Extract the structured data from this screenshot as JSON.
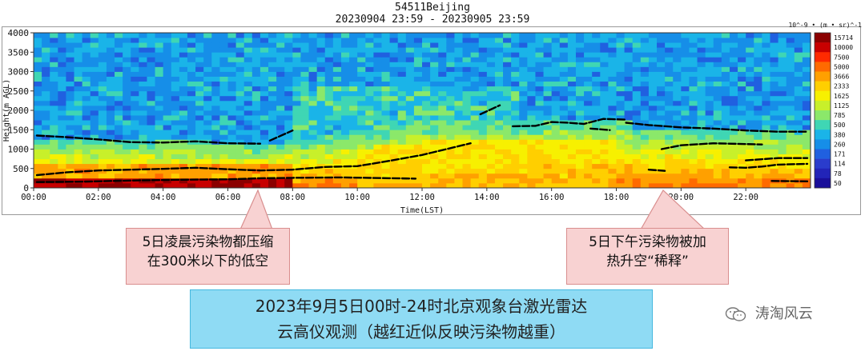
{
  "chart_data": {
    "type": "heatmap",
    "title": "54511Beijing",
    "subtitle": "20230904 23:59 - 20230905 23:59",
    "xlabel": "Time(LST)",
    "ylabel": "Height(m AGL)",
    "x_ticks": [
      "00:00",
      "02:00",
      "04:00",
      "06:00",
      "08:00",
      "10:00",
      "12:00",
      "14:00",
      "16:00",
      "18:00",
      "20:00",
      "22:00"
    ],
    "xlim": [
      0,
      24
    ],
    "y_ticks": [
      0,
      500,
      1000,
      1500,
      2000,
      2500,
      3000,
      3500,
      4000
    ],
    "ylim": [
      0,
      4000
    ],
    "colorbar_unit": "10^-9 • (m • sr)^-1",
    "colorbar_labels": [
      "15714",
      "10000",
      "7500",
      "5000",
      "3666",
      "2333",
      "1625",
      "1125",
      "785",
      "500",
      "380",
      "260",
      "171",
      "114",
      "78",
      "50"
    ],
    "colorbar_colors": [
      "#8b0000",
      "#c80000",
      "#ff2a00",
      "#ff6a00",
      "#ffa000",
      "#ffcf00",
      "#f7f000",
      "#c8f02a",
      "#8be86a",
      "#3fd6b4",
      "#1ab4e8",
      "#168ee8",
      "#2060e0",
      "#2a3ccc",
      "#2224b8",
      "#1a0f9a"
    ],
    "pbl_segments": [
      [
        [
          0.1,
          150
        ],
        [
          1.5,
          160
        ],
        [
          3,
          190
        ],
        [
          4.5,
          210
        ],
        [
          6,
          220
        ],
        [
          7,
          250
        ],
        [
          8,
          260
        ],
        [
          9.5,
          270
        ],
        [
          11,
          250
        ],
        [
          11.8,
          240
        ]
      ],
      [
        [
          0.1,
          330
        ],
        [
          1,
          400
        ],
        [
          2,
          450
        ],
        [
          3,
          470
        ],
        [
          4,
          490
        ],
        [
          5,
          520
        ],
        [
          6,
          480
        ],
        [
          7,
          450
        ],
        [
          8,
          470
        ],
        [
          9,
          540
        ],
        [
          10,
          560
        ],
        [
          11,
          700
        ],
        [
          12,
          850
        ],
        [
          13,
          1050
        ],
        [
          13.5,
          1150
        ]
      ],
      [
        [
          0.1,
          1350
        ],
        [
          1,
          1310
        ],
        [
          2,
          1250
        ],
        [
          3,
          1180
        ],
        [
          4,
          1170
        ],
        [
          5,
          1200
        ],
        [
          6,
          1150
        ],
        [
          7,
          1140
        ]
      ],
      [
        [
          7.3,
          1220
        ],
        [
          8,
          1480
        ]
      ],
      [
        [
          13.8,
          1900
        ],
        [
          14.4,
          2130
        ]
      ],
      [
        [
          14.8,
          1590
        ],
        [
          15.5,
          1600
        ],
        [
          16,
          1700
        ],
        [
          16.5,
          1680
        ],
        [
          17,
          1650
        ],
        [
          17.6,
          1780
        ],
        [
          18.3,
          1760
        ]
      ],
      [
        [
          17.2,
          1530
        ],
        [
          17.8,
          1490
        ]
      ],
      [
        [
          18.3,
          1680
        ],
        [
          19,
          1620
        ],
        [
          20,
          1560
        ],
        [
          21,
          1530
        ],
        [
          22,
          1480
        ],
        [
          23,
          1450
        ],
        [
          23.9,
          1450
        ]
      ],
      [
        [
          19.4,
          1000
        ],
        [
          20,
          1100
        ],
        [
          21,
          1150
        ],
        [
          22,
          1130
        ],
        [
          22.5,
          1120
        ]
      ],
      [
        [
          19,
          470
        ],
        [
          19.5,
          440
        ]
      ],
      [
        [
          21.5,
          530
        ],
        [
          22,
          520
        ],
        [
          22.5,
          550
        ],
        [
          23,
          600
        ],
        [
          23.9,
          620
        ]
      ],
      [
        [
          22,
          710
        ],
        [
          23,
          770
        ],
        [
          23.9,
          770
        ]
      ],
      [
        [
          22.8,
          180
        ],
        [
          23.9,
          170
        ]
      ]
    ]
  },
  "annotations": {
    "left_callout": [
      "5日凌晨污染物都压缩",
      "在300米以下的低空"
    ],
    "right_callout": [
      "5日下午污染物被加",
      "热升空“稀释”"
    ]
  },
  "banner": {
    "line1": "2023年9月5日00时-24时北京观象台激光雷达",
    "line2": "云高仪观测（越红近似反映污染物越重）"
  },
  "watermark": {
    "text": "涛淘风云",
    "icon": "wechat-icon"
  }
}
